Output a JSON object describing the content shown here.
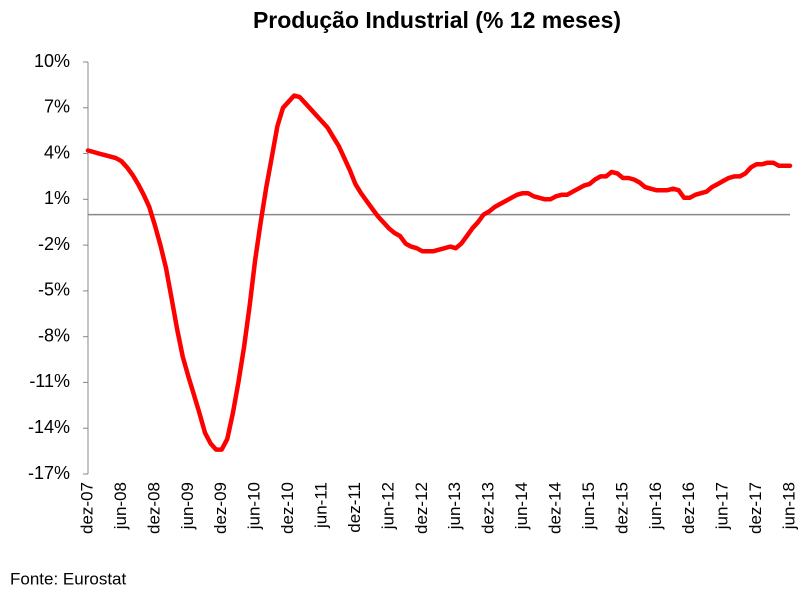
{
  "chart_data": {
    "type": "line",
    "title": "Produção Industrial (% 12 meses)",
    "source": "Fonte: Eurostat",
    "color": "#ff0000",
    "categories": [
      "dez-07",
      null,
      null,
      null,
      null,
      null,
      "jun-08",
      null,
      null,
      null,
      null,
      null,
      "dez-08",
      null,
      null,
      null,
      null,
      null,
      "jun-09",
      null,
      null,
      null,
      null,
      null,
      "dez-09",
      null,
      null,
      null,
      null,
      null,
      "jun-10",
      null,
      null,
      null,
      null,
      null,
      "dez-10",
      null,
      null,
      null,
      null,
      null,
      "jun-11",
      null,
      null,
      null,
      null,
      null,
      "dez-11",
      null,
      null,
      null,
      null,
      null,
      "jun-12",
      null,
      null,
      null,
      null,
      null,
      "dez-12",
      null,
      null,
      null,
      null,
      null,
      "jun-13",
      null,
      null,
      null,
      null,
      null,
      "dez-13",
      null,
      null,
      null,
      null,
      null,
      "jun-14",
      null,
      null,
      null,
      null,
      null,
      "dez-14",
      null,
      null,
      null,
      null,
      null,
      "jun-15",
      null,
      null,
      null,
      null,
      null,
      "dez-15",
      null,
      null,
      null,
      null,
      null,
      "jun-16",
      null,
      null,
      null,
      null,
      null,
      "dez-16",
      null,
      null,
      null,
      null,
      null,
      "jun-17",
      null,
      null,
      null,
      null,
      null,
      "dez-17",
      null,
      null,
      null,
      null,
      null,
      "jun-18"
    ],
    "values": [
      4.2,
      4.1,
      4.0,
      3.9,
      3.8,
      3.7,
      3.5,
      3.1,
      2.6,
      2.0,
      1.3,
      0.5,
      -0.7,
      -2.0,
      -3.5,
      -5.5,
      -7.5,
      -9.3,
      -10.6,
      -11.8,
      -13.0,
      -14.3,
      -15.0,
      -15.4,
      -15.4,
      -14.7,
      -13.0,
      -11.0,
      -8.7,
      -6.0,
      -3.0,
      -0.5,
      1.8,
      3.8,
      5.8,
      7.0,
      7.4,
      7.8,
      7.7,
      7.3,
      6.9,
      6.5,
      6.1,
      5.7,
      5.1,
      4.5,
      3.7,
      2.9,
      2.0,
      1.4,
      0.9,
      0.4,
      -0.1,
      -0.5,
      -0.9,
      -1.2,
      -1.4,
      -1.9,
      -2.1,
      -2.2,
      -2.4,
      -2.4,
      -2.4,
      -2.3,
      -2.2,
      -2.1,
      -2.2,
      -1.9,
      -1.4,
      -0.9,
      -0.5,
      0.0,
      0.2,
      0.5,
      0.7,
      0.9,
      1.1,
      1.3,
      1.4,
      1.4,
      1.2,
      1.1,
      1.0,
      1.0,
      1.2,
      1.3,
      1.3,
      1.5,
      1.7,
      1.9,
      2.0,
      2.3,
      2.5,
      2.5,
      2.8,
      2.7,
      2.4,
      2.4,
      2.3,
      2.1,
      1.8,
      1.7,
      1.6,
      1.6,
      1.6,
      1.7,
      1.6,
      1.1,
      1.1,
      1.3,
      1.4,
      1.5,
      1.8,
      2.0,
      2.2,
      2.4,
      2.5,
      2.5,
      2.7,
      3.1,
      3.3,
      3.3,
      3.4,
      3.4,
      3.2,
      3.2,
      3.2
    ],
    "ylim": [
      -17,
      10
    ],
    "yticks": [
      {
        "value": -17,
        "label": "-17%"
      },
      {
        "value": -14,
        "label": "-14%"
      },
      {
        "value": -11,
        "label": "-11%"
      },
      {
        "value": -8,
        "label": "-8%"
      },
      {
        "value": -5,
        "label": "-5%"
      },
      {
        "value": -2,
        "label": "-2%"
      },
      {
        "value": 1,
        "label": "1%"
      },
      {
        "value": 4,
        "label": "4%"
      },
      {
        "value": 7,
        "label": "7%"
      },
      {
        "value": 10,
        "label": "10%"
      }
    ]
  }
}
